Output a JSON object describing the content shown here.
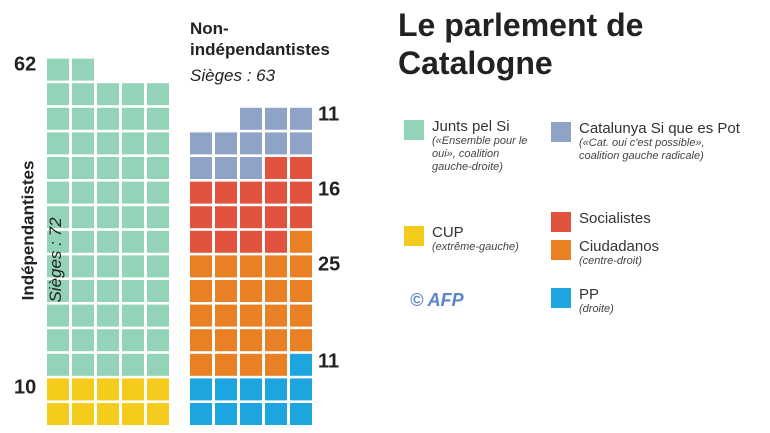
{
  "chart_data": {
    "type": "waffle",
    "title": "Le parlement de Catalogne",
    "source": "© AFP",
    "groups": [
      {
        "name": "Indépendantistes",
        "seats_label": "Sièges :",
        "seats": 72,
        "series": [
          {
            "name": "CUP",
            "note": "(extrême-gauche)",
            "color": "#f5cc1c",
            "value": 10
          },
          {
            "name": "Junts pel Si",
            "note": "(«Ensemble pour le oui», coalition gauche-droite)",
            "color": "#93d3b8",
            "value": 62
          }
        ]
      },
      {
        "name": "Non-indépendantistes",
        "seats_label": "Sièges :",
        "seats": 63,
        "series": [
          {
            "name": "PP",
            "note": "(droite)",
            "color": "#1ea4de",
            "value": 11
          },
          {
            "name": "Ciudadanos",
            "note": "(centre-droit)",
            "color": "#ea8024",
            "value": 25
          },
          {
            "name": "Socialistes",
            "color": "#e0543f",
            "value": 16
          },
          {
            "name": "Catalunya Si que es Pot",
            "note": "(«Cat. oui c'est possible», coalition gauche radicale)",
            "color": "#8fa3c6",
            "value": 11
          }
        ]
      }
    ]
  }
}
